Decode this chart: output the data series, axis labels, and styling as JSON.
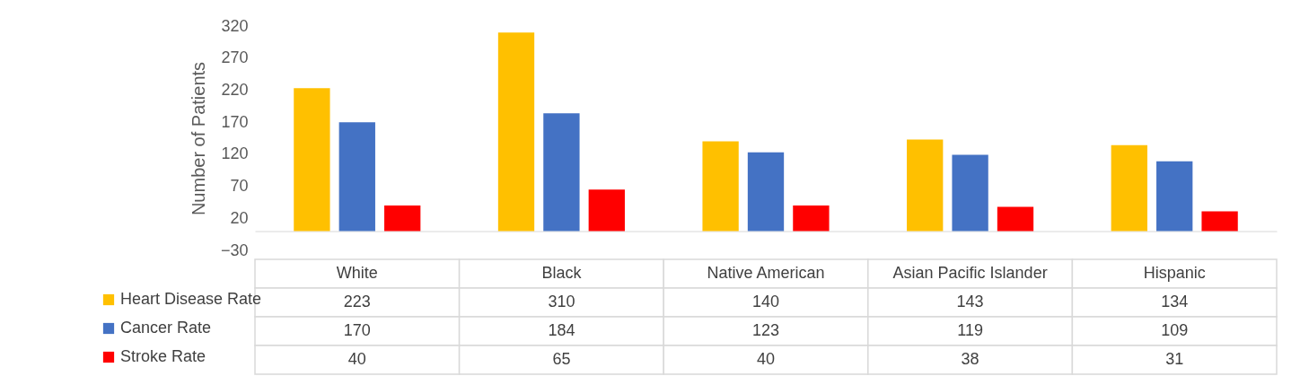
{
  "chart_data": {
    "type": "bar",
    "ylabel": "Number of Patients",
    "categories": [
      "White",
      "Black",
      "Native American",
      "Asian Pacific Islander",
      "Hispanic"
    ],
    "series": [
      {
        "name": "Heart Disease Rate",
        "color": "#ffc000",
        "values": [
          223,
          310,
          140,
          143,
          134
        ]
      },
      {
        "name": "Cancer Rate",
        "color": "#4472c4",
        "values": [
          170,
          184,
          123,
          119,
          109
        ]
      },
      {
        "name": "Stroke Rate",
        "color": "#ff0000",
        "values": [
          40,
          65,
          40,
          38,
          31
        ]
      }
    ],
    "ylim": [
      -30,
      320
    ],
    "yticks": [
      -30,
      20,
      70,
      120,
      170,
      220,
      270,
      320
    ],
    "data_labels": true,
    "legend": "bottom left",
    "grid": false
  }
}
